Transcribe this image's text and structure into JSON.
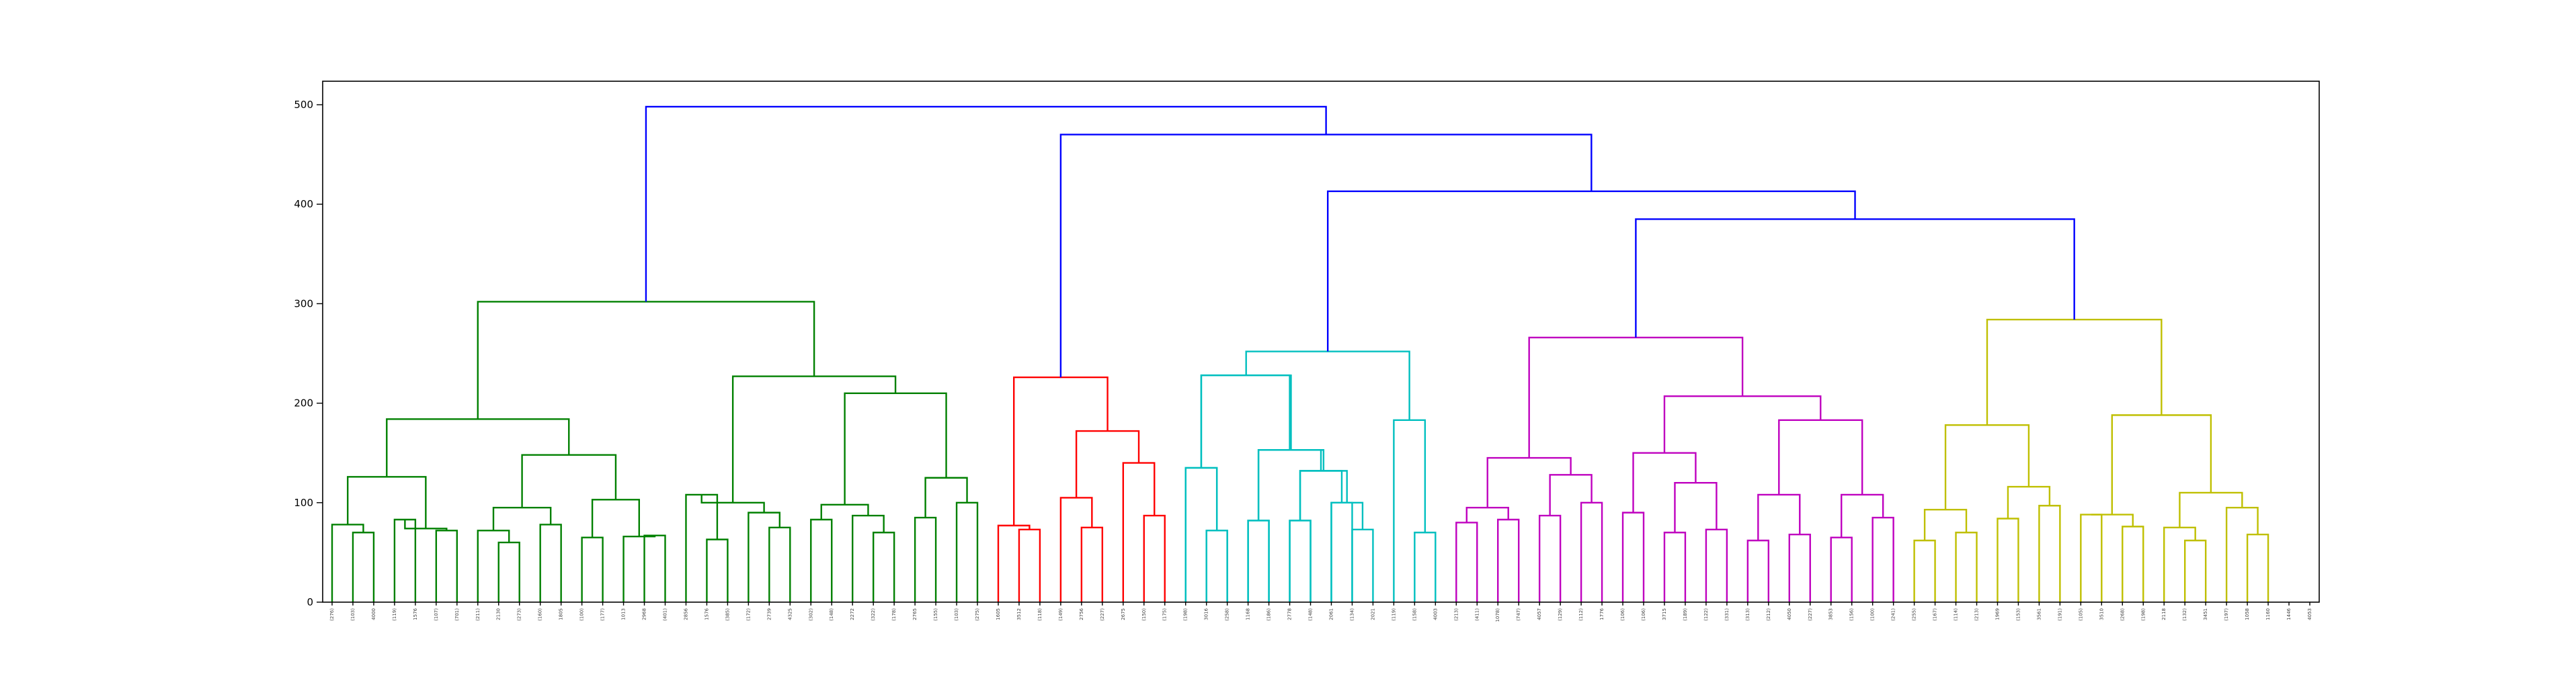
{
  "chart_data": {
    "type": "dendrogram",
    "title": "",
    "xlabel": "",
    "ylabel": "",
    "ylim": [
      0,
      500
    ],
    "yticks": [
      0,
      100,
      200,
      300,
      400,
      500
    ],
    "leaf_labels": [
      "(276)",
      "(103)",
      "4000",
      "(119)",
      "1576",
      "(107)",
      "(701)",
      "(211)",
      "2130",
      "(273)",
      "(160)",
      "1805",
      "(100)",
      "(177)",
      "1013",
      "2968",
      "(401)",
      "2856",
      "1576",
      "(385)",
      "(172)",
      "2739",
      "4325",
      "(302)",
      "(148)",
      "2272",
      "(322)",
      "(178)",
      "2765",
      "(155)",
      "(103)",
      "(275)",
      "1605",
      "3512",
      "(118)",
      "(149)",
      "2756",
      "(227)",
      "2675",
      "(150)",
      "(175)",
      "(198)",
      "3016",
      "(258)",
      "1168",
      "(186)",
      "2778",
      "(148)",
      "2061",
      "(134)",
      "2021",
      "(119)",
      "(158)",
      "4003",
      "(213)",
      "(411)",
      "1078)",
      "(747)",
      "4057",
      "(129)",
      "(112)",
      "1776",
      "(106)",
      "(106)",
      "3715",
      "(189)",
      "(122)",
      "(331)",
      "(313)",
      "(212)",
      "4050",
      "(227)",
      "3853",
      "(156)",
      "(100)",
      "(241)",
      "(255)",
      "(167)",
      "(114)",
      "(213)",
      "1969",
      "(153)",
      "3561",
      "(191)",
      "(105)",
      "3510",
      "(268)",
      "(198)",
      "2118",
      "(132)",
      "3451",
      "(197)",
      "1058",
      "1160",
      "1446",
      "4053"
    ],
    "clusters": [
      {
        "color": "#008000",
        "leaves": 29
      },
      {
        "color": "#ff0000",
        "leaves": 10
      },
      {
        "color": "#00bfbf",
        "leaves": 12
      },
      {
        "color": "#bf00bf",
        "leaves": 20
      },
      {
        "color": "#bfbf00",
        "leaves": 18
      }
    ],
    "above_threshold_color": "#0000ff",
    "merge_heights": [
      498,
      470,
      413,
      385,
      302,
      285,
      268,
      254,
      228,
      227
    ]
  }
}
